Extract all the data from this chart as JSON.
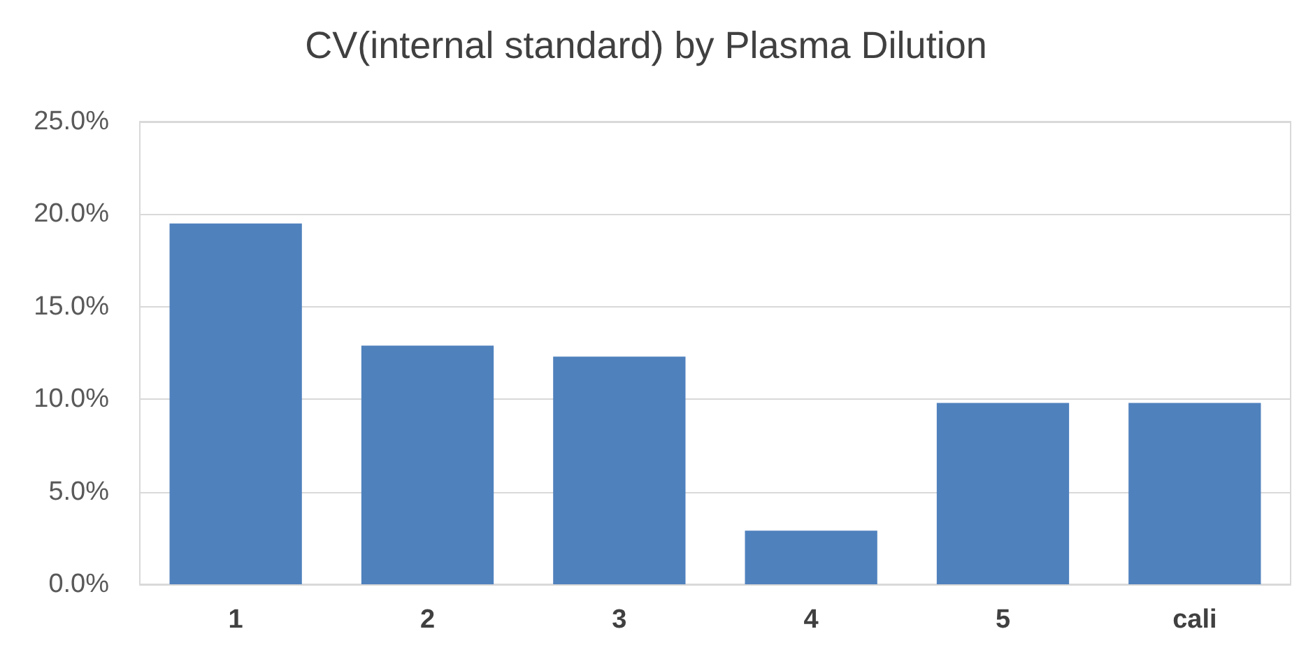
{
  "chart_data": {
    "type": "bar",
    "title": "CV(internal standard) by Plasma Dilution",
    "categories": [
      "1",
      "2",
      "3",
      "4",
      "5",
      "cali"
    ],
    "values": [
      19.5,
      12.9,
      12.3,
      2.9,
      9.8,
      9.8
    ],
    "color": "#4f81bd",
    "ylim": [
      0,
      25
    ],
    "yticks": [
      {
        "value": 0,
        "label": "0.0%"
      },
      {
        "value": 5,
        "label": "5.0%"
      },
      {
        "value": 10,
        "label": "10.0%"
      },
      {
        "value": 15,
        "label": "15.0%"
      },
      {
        "value": 20,
        "label": "20.0%"
      },
      {
        "value": 25,
        "label": "25.0%"
      }
    ],
    "grid": "y"
  }
}
